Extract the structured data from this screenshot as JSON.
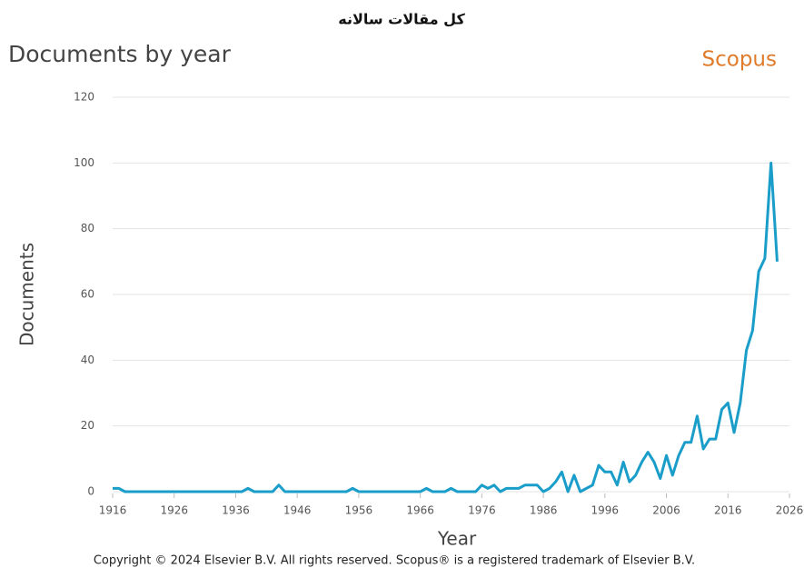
{
  "chart_data": {
    "type": "line",
    "header": "كل مقالات سالانه",
    "title": "Documents by year",
    "brand": "Scopus",
    "ylabel": "Documents",
    "xlabel": "Year",
    "footer": "Copyright © 2024 Elsevier B.V. All rights reserved. Scopus® is a registered trademark of Elsevier B.V.",
    "x": [
      1916,
      1917,
      1918,
      1919,
      1920,
      1921,
      1922,
      1923,
      1924,
      1925,
      1926,
      1927,
      1928,
      1929,
      1930,
      1931,
      1932,
      1933,
      1934,
      1935,
      1936,
      1937,
      1938,
      1939,
      1940,
      1941,
      1942,
      1943,
      1944,
      1945,
      1946,
      1947,
      1948,
      1949,
      1950,
      1951,
      1952,
      1953,
      1954,
      1955,
      1956,
      1957,
      1958,
      1959,
      1960,
      1961,
      1962,
      1963,
      1964,
      1965,
      1966,
      1967,
      1968,
      1969,
      1970,
      1971,
      1972,
      1973,
      1974,
      1975,
      1976,
      1977,
      1978,
      1979,
      1980,
      1981,
      1982,
      1983,
      1984,
      1985,
      1986,
      1987,
      1988,
      1989,
      1990,
      1991,
      1992,
      1993,
      1994,
      1995,
      1996,
      1997,
      1998,
      1999,
      2000,
      2001,
      2002,
      2003,
      2004,
      2005,
      2006,
      2007,
      2008,
      2009,
      2010,
      2011,
      2012,
      2013,
      2014,
      2015,
      2016,
      2017,
      2018,
      2019,
      2020,
      2021,
      2022,
      2023,
      2024
    ],
    "series": [
      {
        "name": "Documents",
        "color": "#1a9ec9",
        "values": [
          1,
          1,
          0,
          0,
          0,
          0,
          0,
          0,
          0,
          0,
          0,
          0,
          0,
          0,
          0,
          0,
          0,
          0,
          0,
          0,
          0,
          0,
          1,
          0,
          0,
          0,
          0,
          2,
          0,
          0,
          0,
          0,
          0,
          0,
          0,
          0,
          0,
          0,
          0,
          1,
          0,
          0,
          0,
          0,
          0,
          0,
          0,
          0,
          0,
          0,
          0,
          1,
          0,
          0,
          0,
          1,
          0,
          0,
          0,
          0,
          2,
          1,
          2,
          0,
          1,
          1,
          1,
          2,
          2,
          2,
          0,
          1,
          3,
          6,
          0,
          5,
          0,
          1,
          2,
          8,
          6,
          6,
          2,
          9,
          3,
          5,
          9,
          12,
          9,
          4,
          11,
          5,
          11,
          15,
          15,
          23,
          13,
          16,
          16,
          25,
          27,
          18,
          27,
          43,
          49,
          67,
          71,
          100,
          70
        ]
      }
    ],
    "xlim": [
      1916,
      2026
    ],
    "xticks": [
      1916,
      1926,
      1936,
      1946,
      1956,
      1966,
      1976,
      1986,
      1996,
      2006,
      2016,
      2026
    ],
    "ylim": [
      0,
      120
    ],
    "yticks": [
      0,
      20,
      40,
      60,
      80,
      100,
      120
    ],
    "grid": true
  }
}
